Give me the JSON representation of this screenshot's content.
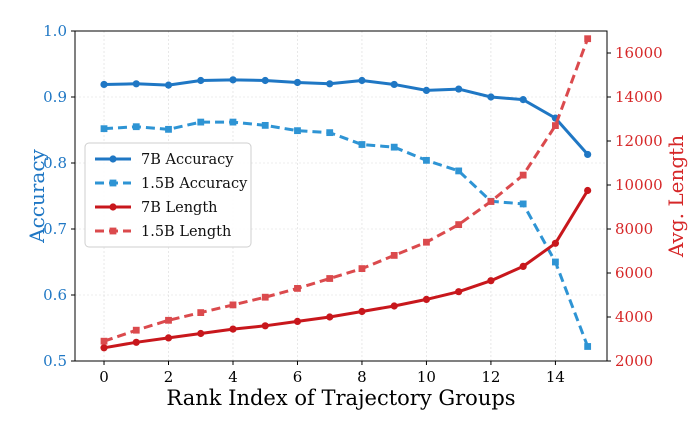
{
  "chart_data": {
    "type": "line",
    "xlabel": "Rank Index of Trajectory Groups",
    "ylabel_left": "Accuracy",
    "ylabel_right": "Avg. Length",
    "x": [
      0,
      1,
      2,
      3,
      4,
      5,
      6,
      7,
      8,
      9,
      10,
      11,
      12,
      13,
      14,
      15
    ],
    "xlim": [
      -0.9,
      15.6
    ],
    "xticks": [
      0,
      2,
      4,
      6,
      8,
      10,
      12,
      14
    ],
    "ylim_left": [
      0.5,
      1.0
    ],
    "yticks_left": [
      "0.5",
      "0.6",
      "0.7",
      "0.8",
      "0.9",
      "1.0"
    ],
    "ylim_right": [
      2000,
      17000
    ],
    "yticks_right": [
      "2000",
      "4000",
      "6000",
      "8000",
      "10000",
      "12000",
      "14000",
      "16000"
    ],
    "grid": true,
    "legend_position": "center-left",
    "colors": {
      "accuracy": "#1f77c4",
      "length": "#d62728"
    },
    "series": [
      {
        "name": "7B Accuracy",
        "axis": "left",
        "style": "solid",
        "marker": "circle",
        "color": "#1f77c4",
        "values": [
          0.919,
          0.92,
          0.918,
          0.925,
          0.926,
          0.925,
          0.922,
          0.92,
          0.925,
          0.919,
          0.91,
          0.912,
          0.9,
          0.896,
          0.868,
          0.813
        ]
      },
      {
        "name": "1.5B Accuracy",
        "axis": "left",
        "style": "dashed",
        "marker": "square",
        "color": "#2e94d4",
        "values": [
          0.852,
          0.855,
          0.851,
          0.862,
          0.862,
          0.857,
          0.849,
          0.846,
          0.828,
          0.824,
          0.804,
          0.788,
          0.742,
          0.738,
          0.65,
          0.522
        ]
      },
      {
        "name": "7B Length",
        "axis": "right",
        "style": "solid",
        "marker": "circle",
        "color": "#c8171c",
        "values": [
          2600,
          2850,
          3050,
          3250,
          3450,
          3600,
          3800,
          4000,
          4250,
          4500,
          4800,
          5150,
          5650,
          6300,
          7350,
          9750
        ]
      },
      {
        "name": "1.5B Length",
        "axis": "right",
        "style": "dashed",
        "marker": "square",
        "color": "#db4a4d",
        "values": [
          2900,
          3400,
          3850,
          4200,
          4550,
          4900,
          5300,
          5750,
          6200,
          6800,
          7400,
          8200,
          9250,
          10450,
          12700,
          16650
        ]
      }
    ]
  }
}
